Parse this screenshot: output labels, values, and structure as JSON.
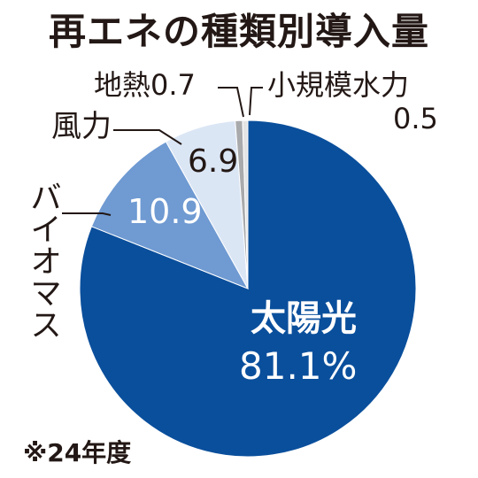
{
  "title": "再エネの種類別導入量",
  "note": "※24年度",
  "chart_data": {
    "type": "pie",
    "title": "再エネの種類別導入量",
    "start": "12 o'clock",
    "direction": "clockwise",
    "slices": [
      {
        "name": "太陽光",
        "value": 81.1,
        "value_label": "81.1%",
        "color": "#0a4f9c"
      },
      {
        "name": "バイオマス",
        "value": 10.9,
        "value_label": "10.9",
        "color": "#6f9ad2"
      },
      {
        "name": "風力",
        "value": 6.9,
        "value_label": "6.9",
        "color": "#dbe6f5"
      },
      {
        "name": "地熱",
        "value": 0.7,
        "value_label": "0.7",
        "color": "#a9aaac"
      },
      {
        "name": "小規模水力",
        "value": 0.5,
        "value_label": "0.5",
        "color": "#e4e4e4"
      }
    ]
  }
}
